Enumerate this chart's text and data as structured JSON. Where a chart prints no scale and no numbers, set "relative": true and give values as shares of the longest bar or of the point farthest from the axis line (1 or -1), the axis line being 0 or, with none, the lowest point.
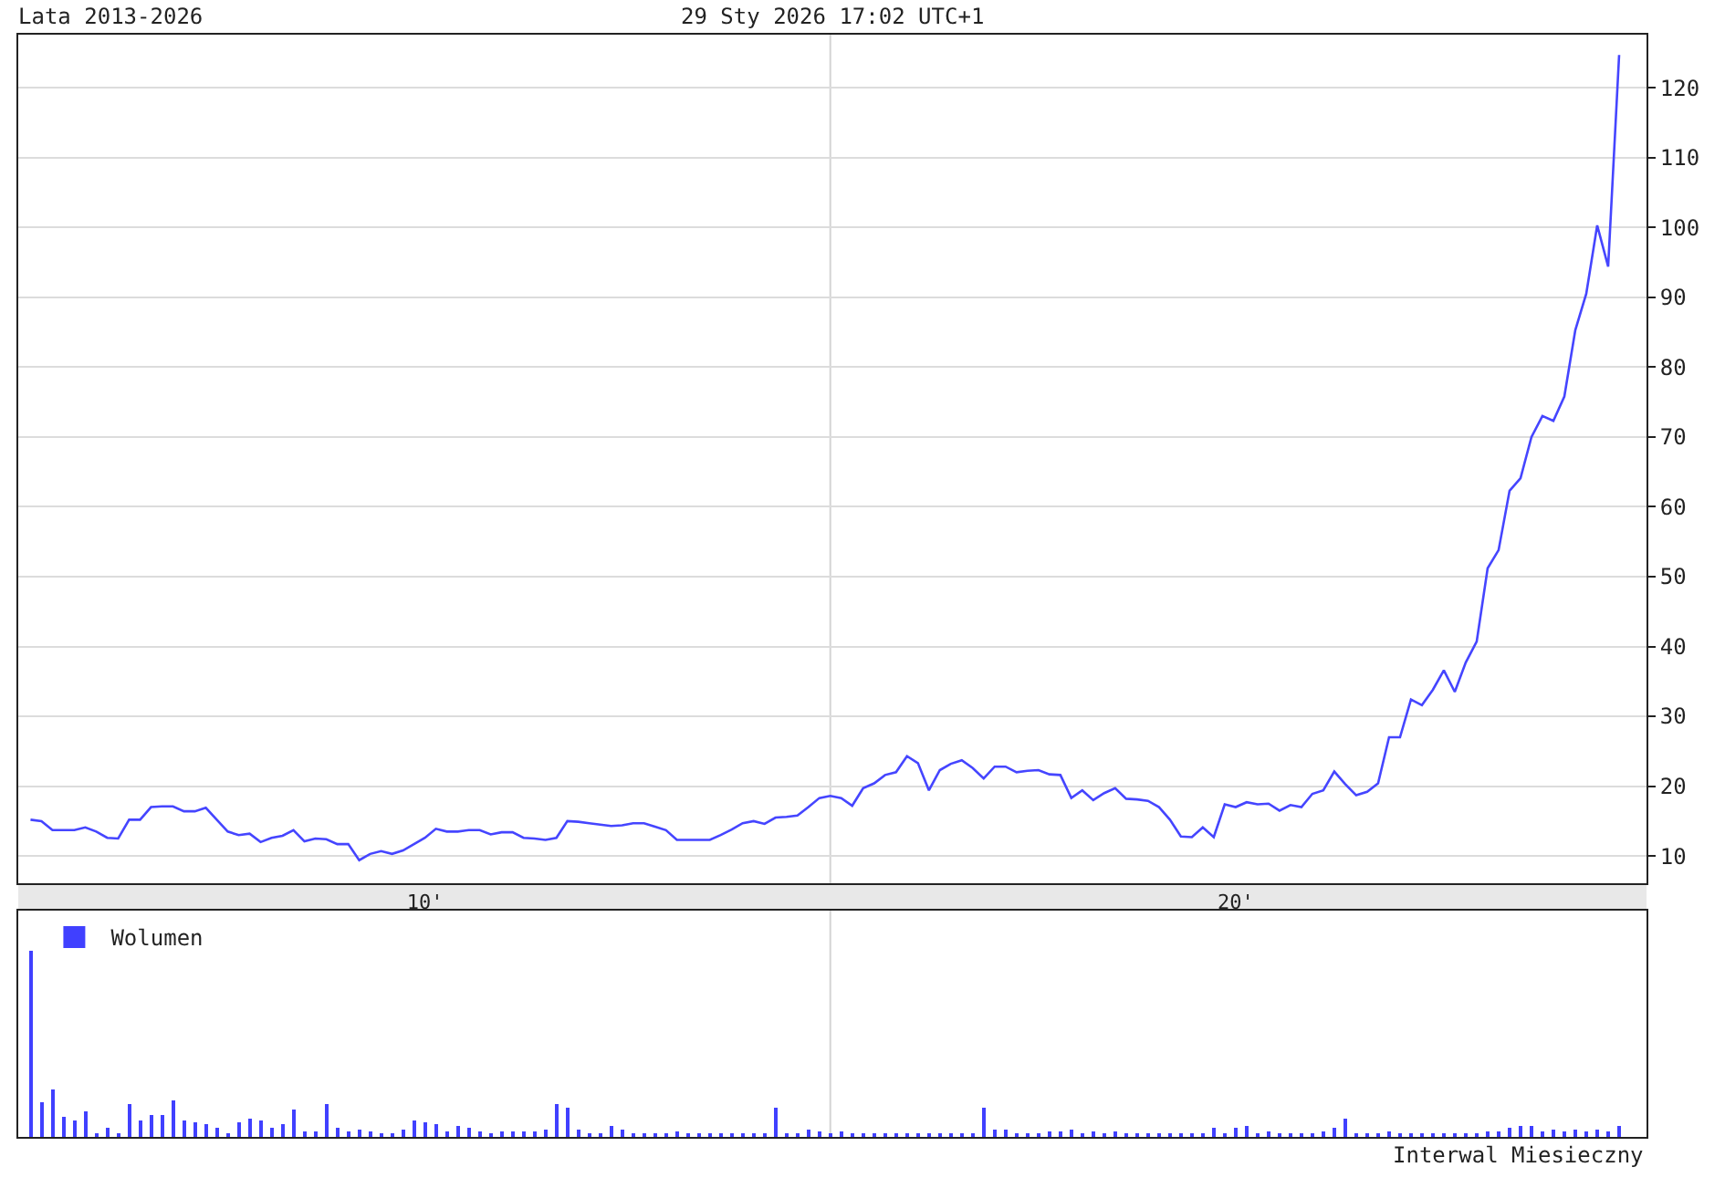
{
  "chart_data": [
    {
      "type": "line",
      "title": "Lata 2013-2026",
      "subtitle": "29 Sty 2026 17:02 UTC+1",
      "categories": [
        null,
        null,
        null,
        null,
        null,
        null,
        null,
        null,
        null,
        null,
        null,
        null,
        null,
        null,
        null,
        null,
        null,
        null,
        null,
        null,
        null,
        null,
        null,
        null,
        null,
        null,
        null,
        null,
        null,
        null,
        null,
        null,
        null,
        null,
        null,
        null,
        "10'",
        null,
        null,
        null,
        null,
        null,
        null,
        null,
        null,
        null,
        null,
        null,
        null,
        null,
        null,
        null,
        null,
        null,
        null,
        null,
        null,
        null,
        null,
        null,
        null,
        null,
        null,
        null,
        null,
        null,
        null,
        null,
        null,
        null,
        null,
        null,
        null,
        null,
        null,
        null,
        null,
        null,
        null,
        null,
        null,
        null,
        null,
        null,
        null,
        null,
        null,
        null,
        null,
        null,
        null,
        null,
        null,
        null,
        null,
        null,
        null,
        null,
        null,
        null,
        null,
        null,
        null,
        null,
        null,
        null,
        null,
        null,
        null,
        null,
        "20'",
        null,
        null,
        null,
        null,
        null,
        null,
        null,
        null,
        null,
        null,
        null,
        null,
        null,
        null,
        null,
        null,
        null,
        null,
        null,
        null,
        null,
        null,
        null,
        null,
        null,
        null,
        null,
        null,
        null,
        null,
        null,
        null,
        null,
        null,
        null
      ],
      "series": [
        {
          "color": "#4545ff",
          "values": [
            15.2,
            15.0,
            13.7,
            13.7,
            13.7,
            14.1,
            13.5,
            12.6,
            12.5,
            15.2,
            15.2,
            17.0,
            17.1,
            17.1,
            16.4,
            16.4,
            16.9,
            15.2,
            13.5,
            13.0,
            13.2,
            12.0,
            12.6,
            12.9,
            13.7,
            12.1,
            12.5,
            12.4,
            11.7,
            11.7,
            9.4,
            10.3,
            10.7,
            10.3,
            10.8,
            11.7,
            12.6,
            13.9,
            13.5,
            13.5,
            13.7,
            13.7,
            13.1,
            13.4,
            13.4,
            12.6,
            12.5,
            12.3,
            12.6,
            15.0,
            14.9,
            14.7,
            14.5,
            14.3,
            14.4,
            14.7,
            14.7,
            14.2,
            13.7,
            12.3,
            12.3,
            12.3,
            12.3,
            13.0,
            13.8,
            14.7,
            15.0,
            14.6,
            15.5,
            15.6,
            15.8,
            17.0,
            18.3,
            18.6,
            18.3,
            17.2,
            19.7,
            20.4,
            21.6,
            22.0,
            24.3,
            23.3,
            19.4,
            22.3,
            23.2,
            23.7,
            22.6,
            21.1,
            22.8,
            22.8,
            22.0,
            22.2,
            22.3,
            21.7,
            21.6,
            18.3,
            19.4,
            18.0,
            19.0,
            19.7,
            18.2,
            18.1,
            17.9,
            17.0,
            15.2,
            12.8,
            12.7,
            14.1,
            12.7,
            17.4,
            17.0,
            17.7,
            17.4,
            17.5,
            16.5,
            17.3,
            17.0,
            18.9,
            19.4,
            22.1,
            20.3,
            18.7,
            19.2,
            20.4,
            27.0,
            27.0,
            32.4,
            31.6,
            33.8,
            36.6,
            33.5,
            37.7,
            40.7,
            51.2,
            53.8,
            62.3,
            64.1,
            70.0,
            73.0,
            72.3,
            75.8,
            85.3,
            90.5,
            100.3,
            94.4,
            124.7
          ]
        }
      ],
      "ylim": [
        6.1,
        127.6
      ],
      "yticks": [
        10,
        20,
        30,
        40,
        50,
        60,
        70,
        80,
        90,
        100,
        110,
        120
      ],
      "grid": "y",
      "line_style": "solid"
    },
    {
      "type": "bar",
      "relative": true,
      "categories": [
        null,
        null,
        null,
        null,
        null,
        null,
        null,
        null,
        null,
        null,
        null,
        null,
        null,
        null,
        null,
        null,
        null,
        null,
        null,
        null,
        null,
        null,
        null,
        null,
        null,
        null,
        null,
        null,
        null,
        null,
        null,
        null,
        null,
        null,
        null,
        null,
        null,
        null,
        null,
        null,
        null,
        null,
        null,
        null,
        null,
        null,
        null,
        null,
        null,
        null,
        null,
        null,
        null,
        null,
        null,
        null,
        null,
        null,
        null,
        null,
        null,
        null,
        null,
        null,
        null,
        null,
        null,
        null,
        null,
        null,
        null,
        null,
        null,
        null,
        null,
        null,
        null,
        null,
        null,
        null,
        null,
        null,
        null,
        null,
        null,
        null,
        null,
        null,
        null,
        null,
        null,
        null,
        null,
        null,
        null,
        null,
        null,
        null,
        null,
        null,
        null,
        null,
        null,
        null,
        null,
        null,
        null,
        null,
        null,
        null,
        null,
        null,
        null,
        null,
        null,
        null,
        null,
        null,
        null,
        null,
        null,
        null,
        null,
        null,
        null,
        null,
        null,
        null,
        null,
        null,
        null,
        null,
        null,
        null,
        null,
        null,
        null,
        null,
        null,
        null,
        null,
        null,
        null,
        null,
        null,
        null
      ],
      "series": [
        {
          "name": "Wolumen",
          "color": "#4040ff",
          "values": [
            1.0,
            0.19,
            0.25,
            0.11,
            0.09,
            0.14,
            0.02,
            0.05,
            0.02,
            0.18,
            0.09,
            0.12,
            0.12,
            0.2,
            0.09,
            0.08,
            0.07,
            0.05,
            0.02,
            0.08,
            0.1,
            0.09,
            0.05,
            0.07,
            0.15,
            0.03,
            0.03,
            0.18,
            0.05,
            0.03,
            0.04,
            0.03,
            0.02,
            0.02,
            0.04,
            0.09,
            0.08,
            0.07,
            0.03,
            0.06,
            0.05,
            0.03,
            0.02,
            0.03,
            0.03,
            0.03,
            0.03,
            0.04,
            0.18,
            0.16,
            0.04,
            0.02,
            0.02,
            0.06,
            0.04,
            0.02,
            0.02,
            0.02,
            0.02,
            0.03,
            0.01,
            0.02,
            0.01,
            0.01,
            0.02,
            0.02,
            0.02,
            0.02,
            0.16,
            0.02,
            0.01,
            0.04,
            0.03,
            0.02,
            0.03,
            0.02,
            0.01,
            0.02,
            0.01,
            0.02,
            0.01,
            0.02,
            0.01,
            0.01,
            0.02,
            0.02,
            0.02,
            0.16,
            0.04,
            0.04,
            0.02,
            0.02,
            0.01,
            0.03,
            0.03,
            0.04,
            0.02,
            0.03,
            0.02,
            0.03,
            0.02,
            0.01,
            0.01,
            0.01,
            0.01,
            0.01,
            0.01,
            0.01,
            0.05,
            0.02,
            0.05,
            0.06,
            0.02,
            0.03,
            0.02,
            0.01,
            0.01,
            0.02,
            0.03,
            0.05,
            0.1,
            0.02,
            0.01,
            0.02,
            0.03,
            0.02,
            0.02,
            0.02,
            0.02,
            0.01,
            0.02,
            0.01,
            0.02,
            0.03,
            0.03,
            0.05,
            0.06,
            0.06,
            0.03,
            0.04,
            0.03,
            0.04,
            0.03,
            0.04,
            0.03,
            0.06
          ]
        }
      ],
      "legend": "top left",
      "annotations": [
        "Interwal Miesieczny"
      ]
    }
  ]
}
